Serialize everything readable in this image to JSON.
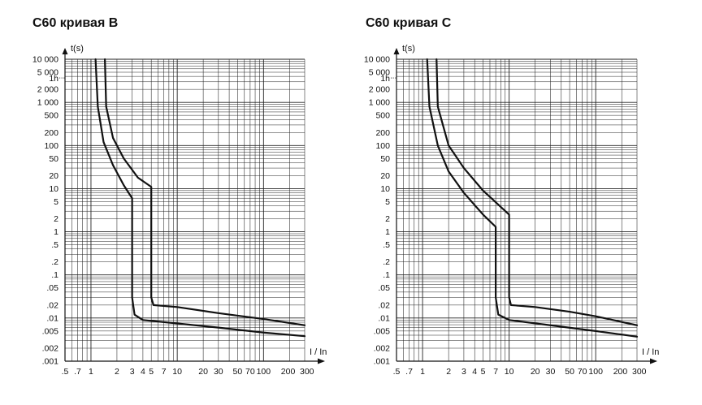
{
  "chart_data": [
    {
      "type": "line",
      "title": "C60 кривая B",
      "ylabel": "t(s)",
      "xlabel": "I / In",
      "x_scale": "log",
      "y_scale": "log",
      "xlim": [
        0.5,
        300
      ],
      "ylim": [
        0.001,
        10000
      ],
      "grid": true,
      "x_ticks": [
        {
          "value": 0.5,
          "label": ".5"
        },
        {
          "value": 0.7,
          "label": ".7"
        },
        {
          "value": 1,
          "label": "1"
        },
        {
          "value": 2,
          "label": "2"
        },
        {
          "value": 3,
          "label": "3"
        },
        {
          "value": 4,
          "label": "4"
        },
        {
          "value": 5,
          "label": "5"
        },
        {
          "value": 7,
          "label": "7"
        },
        {
          "value": 10,
          "label": "10"
        },
        {
          "value": 20,
          "label": "20"
        },
        {
          "value": 30,
          "label": "30"
        },
        {
          "value": 50,
          "label": "50"
        },
        {
          "value": 70,
          "label": "70"
        },
        {
          "value": 100,
          "label": "100"
        },
        {
          "value": 200,
          "label": "200"
        },
        {
          "value": 300,
          "label": "300"
        }
      ],
      "y_ticks": [
        {
          "value": 10000,
          "label": "10 000"
        },
        {
          "value": 5000,
          "label": "5 000"
        },
        {
          "value": 3600,
          "label": "1h"
        },
        {
          "value": 2000,
          "label": "2 000"
        },
        {
          "value": 1000,
          "label": "1 000"
        },
        {
          "value": 500,
          "label": "500"
        },
        {
          "value": 200,
          "label": "200"
        },
        {
          "value": 100,
          "label": "100"
        },
        {
          "value": 50,
          "label": "50"
        },
        {
          "value": 20,
          "label": "20"
        },
        {
          "value": 10,
          "label": "10"
        },
        {
          "value": 5,
          "label": "5"
        },
        {
          "value": 2,
          "label": "2"
        },
        {
          "value": 1,
          "label": "1"
        },
        {
          "value": 0.5,
          "label": ".5"
        },
        {
          "value": 0.2,
          "label": ".2"
        },
        {
          "value": 0.1,
          "label": ".1"
        },
        {
          "value": 0.05,
          "label": ".05"
        },
        {
          "value": 0.02,
          "label": ".02"
        },
        {
          "value": 0.01,
          "label": ".01"
        },
        {
          "value": 0.005,
          "label": ".005"
        },
        {
          "value": 0.002,
          "label": ".002"
        },
        {
          "value": 0.001,
          "label": ".001"
        }
      ],
      "series": [
        {
          "values": [
            [
              1.13,
              10000
            ],
            [
              1.2,
              800
            ],
            [
              1.4,
              120
            ],
            [
              1.8,
              35
            ],
            [
              2.4,
              12
            ],
            [
              3.0,
              6
            ],
            [
              3.0,
              0.03
            ],
            [
              3.2,
              0.012
            ],
            [
              4.0,
              0.009
            ],
            [
              10,
              0.0075
            ],
            [
              30,
              0.006
            ],
            [
              100,
              0.0046
            ],
            [
              300,
              0.0038
            ]
          ]
        },
        {
          "values": [
            [
              1.45,
              10000
            ],
            [
              1.5,
              800
            ],
            [
              1.8,
              150
            ],
            [
              2.4,
              50
            ],
            [
              3.5,
              18
            ],
            [
              5.0,
              11
            ],
            [
              5.0,
              0.03
            ],
            [
              5.3,
              0.02
            ],
            [
              10,
              0.018
            ],
            [
              30,
              0.013
            ],
            [
              100,
              0.0095
            ],
            [
              300,
              0.0068
            ]
          ]
        }
      ]
    },
    {
      "type": "line",
      "title": "C60 кривая C",
      "ylabel": "t(s)",
      "xlabel": "I / In",
      "x_scale": "log",
      "y_scale": "log",
      "xlim": [
        0.5,
        300
      ],
      "ylim": [
        0.001,
        10000
      ],
      "grid": true,
      "x_ticks": [
        {
          "value": 0.5,
          "label": ".5"
        },
        {
          "value": 0.7,
          "label": ".7"
        },
        {
          "value": 1,
          "label": "1"
        },
        {
          "value": 2,
          "label": "2"
        },
        {
          "value": 3,
          "label": "3"
        },
        {
          "value": 4,
          "label": "4"
        },
        {
          "value": 5,
          "label": "5"
        },
        {
          "value": 7,
          "label": "7"
        },
        {
          "value": 10,
          "label": "10"
        },
        {
          "value": 20,
          "label": "20"
        },
        {
          "value": 30,
          "label": "30"
        },
        {
          "value": 50,
          "label": "50"
        },
        {
          "value": 70,
          "label": "70"
        },
        {
          "value": 100,
          "label": "100"
        },
        {
          "value": 200,
          "label": "200"
        },
        {
          "value": 300,
          "label": "300"
        }
      ],
      "y_ticks": [
        {
          "value": 10000,
          "label": "10 000"
        },
        {
          "value": 5000,
          "label": "5 000"
        },
        {
          "value": 3600,
          "label": "1h"
        },
        {
          "value": 2000,
          "label": "2 000"
        },
        {
          "value": 1000,
          "label": "1 000"
        },
        {
          "value": 500,
          "label": "500"
        },
        {
          "value": 200,
          "label": "200"
        },
        {
          "value": 100,
          "label": "100"
        },
        {
          "value": 50,
          "label": "50"
        },
        {
          "value": 20,
          "label": "20"
        },
        {
          "value": 10,
          "label": "10"
        },
        {
          "value": 5,
          "label": "5"
        },
        {
          "value": 2,
          "label": "2"
        },
        {
          "value": 1,
          "label": "1"
        },
        {
          "value": 0.5,
          "label": ".5"
        },
        {
          "value": 0.2,
          "label": ".2"
        },
        {
          "value": 0.1,
          "label": ".1"
        },
        {
          "value": 0.05,
          "label": ".05"
        },
        {
          "value": 0.02,
          "label": ".02"
        },
        {
          "value": 0.01,
          "label": ".01"
        },
        {
          "value": 0.005,
          "label": ".005"
        },
        {
          "value": 0.002,
          "label": ".002"
        },
        {
          "value": 0.001,
          "label": ".001"
        }
      ],
      "series": [
        {
          "values": [
            [
              1.13,
              10000
            ],
            [
              1.2,
              800
            ],
            [
              1.5,
              100
            ],
            [
              2.0,
              25
            ],
            [
              3.0,
              8
            ],
            [
              5.0,
              2.5
            ],
            [
              7.0,
              1.3
            ],
            [
              7.0,
              0.03
            ],
            [
              7.5,
              0.012
            ],
            [
              10,
              0.009
            ],
            [
              30,
              0.0068
            ],
            [
              100,
              0.005
            ],
            [
              300,
              0.0037
            ]
          ]
        },
        {
          "values": [
            [
              1.45,
              10000
            ],
            [
              1.5,
              800
            ],
            [
              2.0,
              100
            ],
            [
              3.0,
              30
            ],
            [
              5.0,
              9
            ],
            [
              10,
              2.5
            ],
            [
              10,
              0.03
            ],
            [
              10.5,
              0.02
            ],
            [
              20,
              0.018
            ],
            [
              50,
              0.014
            ],
            [
              100,
              0.011
            ],
            [
              300,
              0.0068
            ]
          ]
        }
      ]
    }
  ]
}
